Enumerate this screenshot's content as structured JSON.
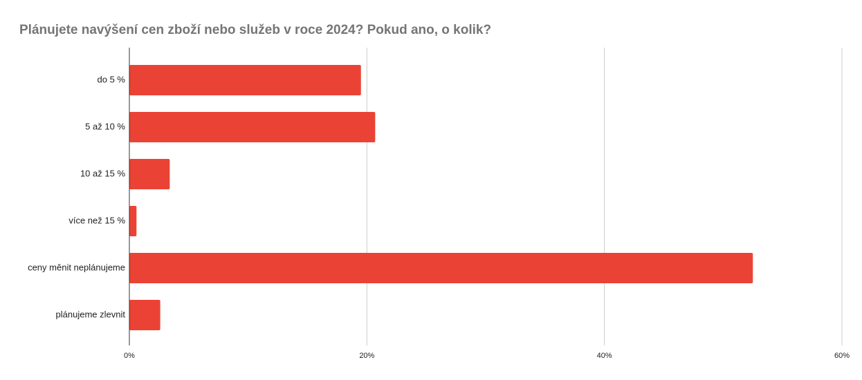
{
  "chart_data": {
    "type": "bar",
    "orientation": "horizontal",
    "title": "Plánujete navýšení cen zboží nebo služeb v roce 2024? Pokud ano, o kolik?",
    "categories": [
      "do 5 %",
      "5 až 10 %",
      "10 až 15 %",
      "více než 15 %",
      "ceny měnit neplánujeme",
      "plánujeme zlevnit"
    ],
    "values": [
      19.5,
      20.7,
      3.4,
      0.6,
      52.5,
      2.6
    ],
    "color": "#ea4335",
    "xlim": [
      0,
      60
    ],
    "xticks": [
      {
        "value": 0,
        "label": "0%"
      },
      {
        "value": 20,
        "label": "20%"
      },
      {
        "value": 40,
        "label": "40%"
      },
      {
        "value": 60,
        "label": "60%"
      }
    ],
    "grid": true
  }
}
